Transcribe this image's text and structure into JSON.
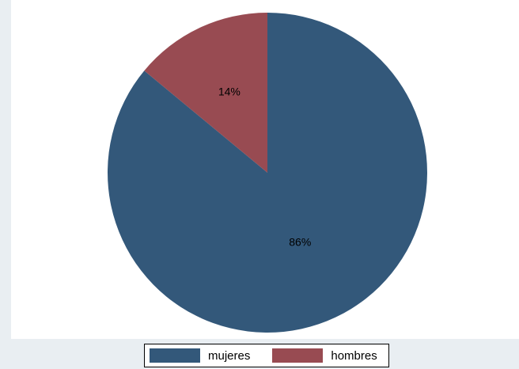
{
  "chart_data": {
    "type": "pie",
    "categories": [
      "mujeres",
      "hombres"
    ],
    "values": [
      86,
      14
    ],
    "data_labels": [
      "86%",
      "14%"
    ],
    "colors": [
      "#33587a",
      "#984b52"
    ],
    "start": "12 o'clock",
    "direction": "clockwise",
    "legend": {
      "position": "bottom",
      "entries": [
        "mujeres",
        "hombres"
      ]
    }
  }
}
